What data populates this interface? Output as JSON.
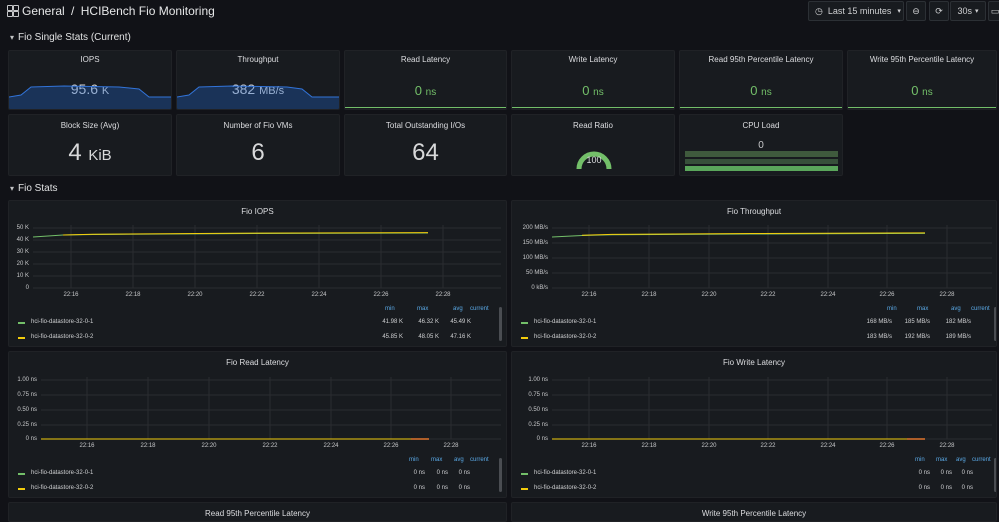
{
  "breadcrumb": {
    "folder": "General",
    "separator": "/",
    "dashboard": "HCIBench Fio Monitoring"
  },
  "toolbar": {
    "time_range": "Last 15 minutes",
    "refresh_interval": "30s"
  },
  "rows": {
    "single_stats": "Fio Single Stats (Current)",
    "fio_stats": "Fio Stats"
  },
  "stats": {
    "iops": {
      "title": "IOPS",
      "value": "95.6",
      "unit": "K"
    },
    "throughput": {
      "title": "Throughput",
      "value": "382",
      "unit": "MB/s"
    },
    "read_latency": {
      "title": "Read Latency",
      "value": "0",
      "unit": "ns"
    },
    "write_latency": {
      "title": "Write Latency",
      "value": "0",
      "unit": "ns"
    },
    "read_p95": {
      "title": "Read 95th Percentile Latency",
      "value": "0",
      "unit": "ns"
    },
    "write_p95": {
      "title": "Write 95th Percentile Latency",
      "value": "0",
      "unit": "ns"
    },
    "block_size": {
      "title": "Block Size (Avg)",
      "value": "4",
      "unit": "KiB"
    },
    "vms": {
      "title": "Number of Fio VMs",
      "value": "6"
    },
    "outstanding": {
      "title": "Total Outstanding I/Os",
      "value": "64"
    },
    "read_ratio": {
      "title": "Read Ratio",
      "value": "100",
      "gauge_fraction": 1.0
    },
    "cpu_load": {
      "title": "CPU Load",
      "value": "0"
    }
  },
  "colors": {
    "green": "#73bf69",
    "blue": "#1f60c4",
    "series_green": "#73bf69",
    "series_yellow": "#f2cc0c",
    "legend_header": "#5aa9e6"
  },
  "graphs": {
    "x_ticks": [
      "22:16",
      "22:18",
      "22:20",
      "22:22",
      "22:24",
      "22:26",
      "22:28"
    ],
    "legend_headers": {
      "min": "min",
      "max": "max",
      "avg": "avg",
      "current": "current"
    },
    "iops": {
      "title": "Fio IOPS",
      "y_ticks": [
        "50 K",
        "40 K",
        "30 K",
        "20 K",
        "10 K",
        "0"
      ],
      "series": [
        {
          "name": "hci-fio-datastore-32-0-1",
          "min": "41.98 K",
          "max": "46.32 K",
          "avg": "45.49 K",
          "current": ""
        },
        {
          "name": "hci-fio-datastore-32-0-2",
          "min": "45.85 K",
          "max": "48.05 K",
          "avg": "47.16 K",
          "current": ""
        }
      ]
    },
    "throughput": {
      "title": "Fio Throughput",
      "y_ticks": [
        "200 MB/s",
        "150 MB/s",
        "100 MB/s",
        "50 MB/s",
        "0 kB/s"
      ],
      "series": [
        {
          "name": "hci-fio-datastore-32-0-1",
          "min": "168 MB/s",
          "max": "185 MB/s",
          "avg": "182 MB/s",
          "current": ""
        },
        {
          "name": "hci-fio-datastore-32-0-2",
          "min": "183 MB/s",
          "max": "192 MB/s",
          "avg": "189 MB/s",
          "current": ""
        }
      ]
    },
    "read_latency": {
      "title": "Fio Read Latency",
      "y_ticks": [
        "1.00 ns",
        "0.75 ns",
        "0.50 ns",
        "0.25 ns",
        "0 ns"
      ],
      "series": [
        {
          "name": "hci-fio-datastore-32-0-1",
          "min": "0 ns",
          "max": "0 ns",
          "avg": "0 ns",
          "current": ""
        },
        {
          "name": "hci-fio-datastore-32-0-2",
          "min": "0 ns",
          "max": "0 ns",
          "avg": "0 ns",
          "current": ""
        }
      ]
    },
    "write_latency": {
      "title": "Fio Write Latency",
      "y_ticks": [
        "1.00 ns",
        "0.75 ns",
        "0.50 ns",
        "0.25 ns",
        "0 ns"
      ],
      "series": [
        {
          "name": "hci-fio-datastore-32-0-1",
          "min": "0 ns",
          "max": "0 ns",
          "avg": "0 ns",
          "current": ""
        },
        {
          "name": "hci-fio-datastore-32-0-2",
          "min": "0 ns",
          "max": "0 ns",
          "avg": "0 ns",
          "current": ""
        }
      ]
    },
    "read_p95": {
      "title": "Read 95th Percentile Latency"
    },
    "write_p95": {
      "title": "Write 95th Percentile Latency"
    }
  }
}
